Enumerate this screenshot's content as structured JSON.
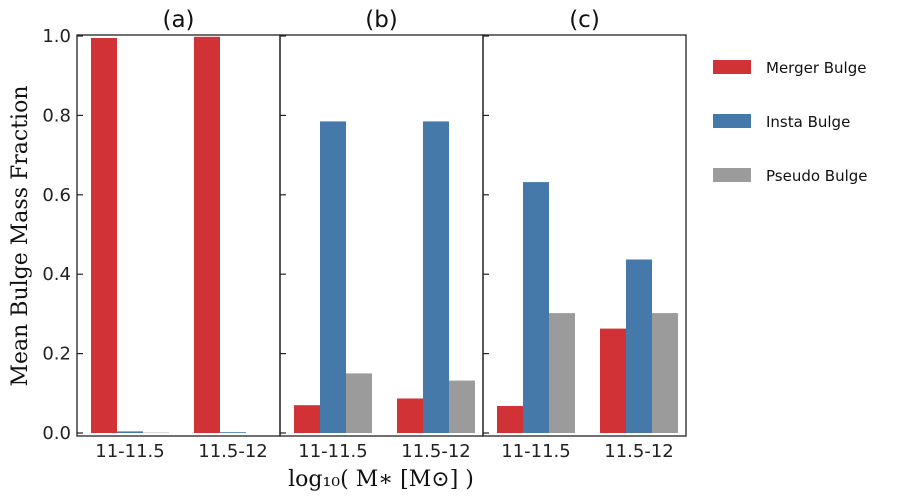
{
  "chart_data": {
    "type": "bar",
    "ylabel": "Mean Bulge Mass Fraction",
    "xlabel": "log₁₀( M∗ [M⊙] )",
    "ylim": [
      0,
      1.0
    ],
    "yticks": [
      "0.0",
      "0.2",
      "0.4",
      "0.6",
      "0.8",
      "1.0"
    ],
    "categories": [
      "11-11.5",
      "11.5-12"
    ],
    "series_colors": {
      "Merger Bulge": "#d03236",
      "Insta Bulge": "#4479a9",
      "Pseudo Bulge": "#9b9b9b"
    },
    "legend": {
      "placement": "right",
      "entries": [
        "Merger Bulge",
        "Insta Bulge",
        "Pseudo Bulge"
      ]
    },
    "panels": [
      {
        "title": "(a)",
        "series": [
          {
            "name": "Merger Bulge",
            "values": [
              0.995,
              0.998
            ]
          },
          {
            "name": "Insta Bulge",
            "values": [
              0.004,
              0.002
            ]
          },
          {
            "name": "Pseudo Bulge",
            "values": [
              0.001,
              0.0
            ]
          }
        ]
      },
      {
        "title": "(b)",
        "series": [
          {
            "name": "Merger Bulge",
            "values": [
              0.07,
              0.087
            ]
          },
          {
            "name": "Insta Bulge",
            "values": [
              0.785,
              0.785
            ]
          },
          {
            "name": "Pseudo Bulge",
            "values": [
              0.15,
              0.132
            ]
          }
        ]
      },
      {
        "title": "(c)",
        "series": [
          {
            "name": "Merger Bulge",
            "values": [
              0.068,
              0.263
            ]
          },
          {
            "name": "Insta Bulge",
            "values": [
              0.632,
              0.437
            ]
          },
          {
            "name": "Pseudo Bulge",
            "values": [
              0.302,
              0.302
            ]
          }
        ]
      }
    ]
  }
}
